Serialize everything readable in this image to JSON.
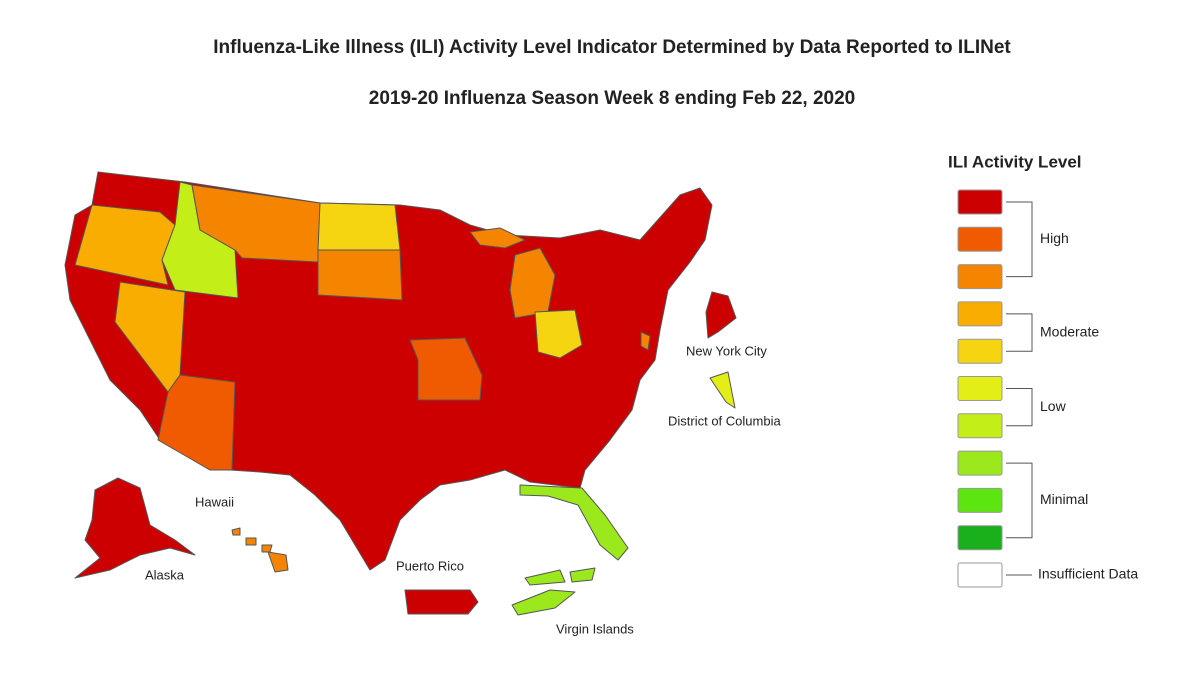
{
  "header": {
    "title": "Influenza-Like Illness (ILI) Activity Level Indicator Determined by Data Reported to ILINet",
    "subtitle": "2019-20 Influenza Season Week 8 ending Feb 22, 2020"
  },
  "map": {
    "labels": [
      "New York City",
      "District of Columbia",
      "Hawaii",
      "Alaska",
      "Puerto Rico",
      "Virgin Islands"
    ]
  },
  "legend": {
    "title": "ILI Activity Level",
    "groups": [
      {
        "label": "High",
        "colors": [
          "#cc0000",
          "#f05a00",
          "#f58400"
        ]
      },
      {
        "label": "Moderate",
        "colors": [
          "#f9ad00",
          "#f5d411"
        ]
      },
      {
        "label": "Low",
        "colors": [
          "#e3ee16",
          "#c3ee18"
        ]
      },
      {
        "label": "Minimal",
        "colors": [
          "#9be91c",
          "#5de512",
          "#19b01b"
        ]
      },
      {
        "label": "Insufficient Data",
        "colors": [
          "#ffffff"
        ]
      }
    ]
  }
}
